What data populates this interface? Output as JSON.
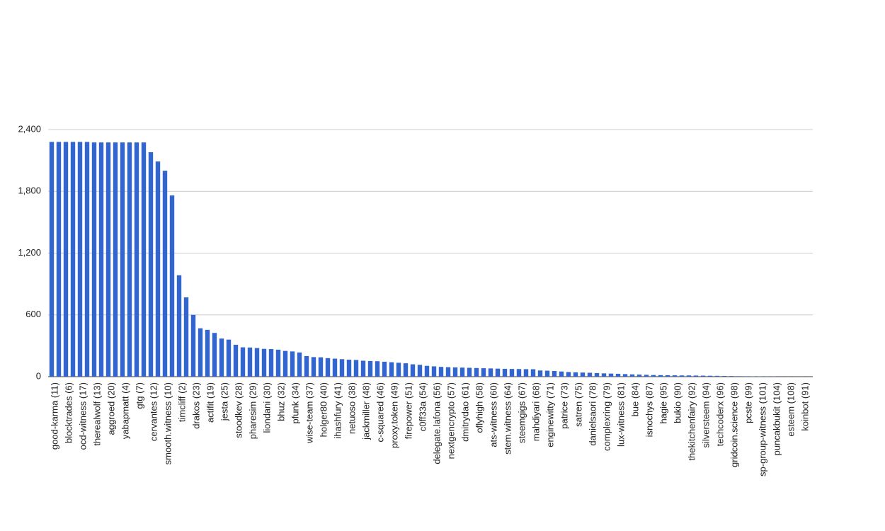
{
  "chart_data": {
    "type": "bar",
    "categories": [
      "good-karma (11)",
      null,
      "blocktrades (6)",
      null,
      "ocd-witness (17)",
      null,
      "therealwolf (13)",
      null,
      "aggroed (20)",
      null,
      "yabapmatt (4)",
      null,
      "gtg (7)",
      null,
      "cervantes (12)",
      null,
      "smooth.witness (10)",
      null,
      "timcliff (2)",
      null,
      "drakos (23)",
      null,
      "actifit (19)",
      null,
      "jesta (25)",
      null,
      "stoodkev (28)",
      null,
      "pharesim (29)",
      null,
      "liondani (30)",
      null,
      "bhuz (32)",
      null,
      "pfunk (34)",
      null,
      "wise-team (37)",
      null,
      "holger80 (40)",
      null,
      "ihashfury (41)",
      null,
      "netuoso (38)",
      null,
      "jackmiller (48)",
      null,
      "c-squared (46)",
      null,
      "proxy.token (49)",
      null,
      "firepower (51)",
      null,
      "c0ff33a (54)",
      null,
      "delegate.lafona (56)",
      null,
      "nextgencrypto (57)",
      null,
      "dmitrydao (61)",
      null,
      "oflyhigh (58)",
      null,
      "ats-witness (60)",
      null,
      "stem.witness (64)",
      null,
      "steemgigs (67)",
      null,
      "mahdiyari (68)",
      null,
      "enginewitty (71)",
      null,
      "patrice (73)",
      null,
      "satren (75)",
      null,
      "danielsaori (78)",
      null,
      "complexring (79)",
      null,
      "lux-witness (81)",
      null,
      "bue (84)",
      null,
      "isnochys (87)",
      null,
      "hagie (95)",
      null,
      "bukio (90)",
      null,
      "thekitchenfairy (92)",
      null,
      "silversteem (94)",
      null,
      "techcoderx (96)",
      null,
      "gridcoin.science (98)",
      null,
      "pcste (99)",
      null,
      "sp-group-witness (101)",
      null,
      "puncakbukit (104)",
      null,
      "esteem (108)",
      null,
      "koinbot (91)",
      null
    ],
    "values": [
      2280,
      2280,
      2280,
      2280,
      2280,
      2280,
      2275,
      2275,
      2275,
      2275,
      2275,
      2275,
      2275,
      2275,
      2180,
      2090,
      2000,
      1760,
      985,
      770,
      600,
      470,
      455,
      425,
      370,
      360,
      310,
      285,
      283,
      278,
      270,
      268,
      262,
      250,
      245,
      235,
      200,
      190,
      188,
      180,
      175,
      170,
      165,
      162,
      155,
      152,
      150,
      145,
      140,
      135,
      130,
      120,
      115,
      105,
      100,
      95,
      92,
      90,
      88,
      86,
      84,
      82,
      80,
      78,
      76,
      75,
      74,
      73,
      72,
      60,
      58,
      55,
      50,
      45,
      42,
      40,
      38,
      35,
      32,
      30,
      28,
      25,
      22,
      20,
      18,
      16,
      15,
      14,
      13,
      12,
      12,
      11,
      10,
      9,
      8,
      7,
      6,
      5,
      4,
      3,
      3,
      2,
      2,
      1,
      1,
      1,
      1,
      1
    ],
    "color": "#3366cc",
    "ylim": [
      0,
      2400
    ],
    "yticks": [
      0,
      600,
      {
        "value": 1200,
        "label": "1,200"
      },
      {
        "value": 1800,
        "label": "1,800"
      },
      {
        "value": 2400,
        "label": "2,400"
      }
    ],
    "grid": true
  }
}
